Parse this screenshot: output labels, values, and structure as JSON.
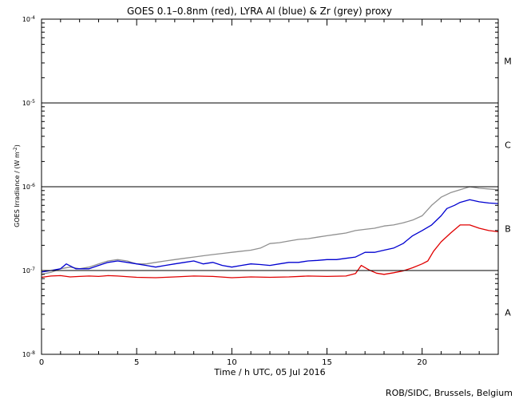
{
  "chart_data": {
    "type": "line",
    "title": "GOES 0.1–0.8nm (red), LYRA Al (blue) & Zr (grey) proxy",
    "xlabel": "Time / h UTC, 05 Jul 2016",
    "ylabel": "GOES Irradiance / (W m",
    "ylabel_sup": "-2",
    "ylabel_close": ")",
    "xlim": [
      0,
      24
    ],
    "ylim": [
      1e-08,
      0.0001
    ],
    "yscale": "log",
    "x_ticks": [
      {
        "value": 0,
        "label": "0"
      },
      {
        "value": 5,
        "label": "5"
      },
      {
        "value": 10,
        "label": "10"
      },
      {
        "value": 15,
        "label": "15"
      },
      {
        "value": 20,
        "label": "20"
      }
    ],
    "y_ticks": [
      {
        "exp": -8,
        "base": "10",
        "sup": "-8"
      },
      {
        "exp": -7,
        "base": "10",
        "sup": "-7"
      },
      {
        "exp": -6,
        "base": "10",
        "sup": "-6"
      },
      {
        "exp": -5,
        "base": "10",
        "sup": "-5"
      },
      {
        "exp": -4,
        "base": "10",
        "sup": "-4"
      }
    ],
    "flare_class_lines": [
      1e-07,
      1e-06,
      1e-05
    ],
    "flare_classes": [
      {
        "label": "A",
        "exp": -7.5
      },
      {
        "label": "B",
        "exp": -6.5
      },
      {
        "label": "C",
        "exp": -5.5
      },
      {
        "label": "M",
        "exp": -4.5
      }
    ],
    "series": [
      {
        "name": "GOES 0.1–0.8nm",
        "color": "#e00000",
        "x": [
          0,
          0.5,
          1,
          1.5,
          2,
          2.5,
          3,
          3.5,
          4,
          5,
          6,
          7,
          8,
          9,
          10,
          11,
          12,
          13,
          14,
          15,
          16,
          16.5,
          16.8,
          17.2,
          17.6,
          18,
          18.5,
          19,
          19.5,
          20,
          20.3,
          20.6,
          21,
          21.5,
          22,
          22.5,
          23,
          23.5,
          24
        ],
        "y": [
          8.3e-08,
          8.6e-08,
          8.7e-08,
          8.4e-08,
          8.5e-08,
          8.6e-08,
          8.5e-08,
          8.7e-08,
          8.6e-08,
          8.3e-08,
          8.2e-08,
          8.4e-08,
          8.6e-08,
          8.5e-08,
          8.2e-08,
          8.4e-08,
          8.3e-08,
          8.4e-08,
          8.6e-08,
          8.5e-08,
          8.6e-08,
          9.2e-08,
          1.15e-07,
          1.02e-07,
          9.3e-08,
          9e-08,
          9.4e-08,
          9.9e-08,
          1.08e-07,
          1.2e-07,
          1.3e-07,
          1.7e-07,
          2.2e-07,
          2.8e-07,
          3.5e-07,
          3.5e-07,
          3.2e-07,
          3e-07,
          2.9e-07
        ]
      },
      {
        "name": "LYRA Al proxy",
        "color": "#0000d0",
        "x": [
          0,
          0.5,
          1,
          1.3,
          1.8,
          2.5,
          3,
          3.5,
          4,
          4.5,
          5,
          5.5,
          6,
          6.5,
          7,
          7.5,
          8,
          8.5,
          9,
          9.5,
          10,
          10.5,
          11,
          11.5,
          12,
          12.5,
          13,
          13.5,
          14,
          14.5,
          15,
          15.5,
          16,
          16.5,
          17,
          17.5,
          18,
          18.5,
          19,
          19.5,
          20,
          20.5,
          21,
          21.3,
          21.7,
          22,
          22.5,
          23,
          23.5,
          24
        ],
        "y": [
          9.6e-08,
          1e-07,
          1.05e-07,
          1.2e-07,
          1.05e-07,
          1.05e-07,
          1.15e-07,
          1.25e-07,
          1.3e-07,
          1.25e-07,
          1.2e-07,
          1.15e-07,
          1.1e-07,
          1.15e-07,
          1.2e-07,
          1.25e-07,
          1.3e-07,
          1.2e-07,
          1.25e-07,
          1.15e-07,
          1.1e-07,
          1.15e-07,
          1.2e-07,
          1.18e-07,
          1.15e-07,
          1.2e-07,
          1.25e-07,
          1.25e-07,
          1.3e-07,
          1.32e-07,
          1.35e-07,
          1.35e-07,
          1.4e-07,
          1.45e-07,
          1.65e-07,
          1.65e-07,
          1.75e-07,
          1.85e-07,
          2.1e-07,
          2.6e-07,
          3e-07,
          3.5e-07,
          4.5e-07,
          5.5e-07,
          6e-07,
          6.5e-07,
          7e-07,
          6.6e-07,
          6.4e-07,
          6.3e-07
        ]
      },
      {
        "name": "LYRA Zr proxy",
        "color": "#909090",
        "x": [
          0,
          0.5,
          1,
          1.5,
          2,
          2.5,
          3,
          3.5,
          4,
          4.5,
          5,
          5.5,
          6,
          6.5,
          7,
          7.5,
          8,
          8.5,
          9,
          9.5,
          10,
          10.5,
          11,
          11.5,
          12,
          12.5,
          13,
          13.5,
          14,
          14.5,
          15,
          15.5,
          16,
          16.5,
          17,
          17.5,
          18,
          18.5,
          19,
          19.5,
          20,
          20.5,
          21,
          21.5,
          22,
          22.5,
          23,
          23.5,
          24
        ],
        "y": [
          9e-08,
          9.5e-08,
          1.05e-07,
          1.1e-07,
          1.05e-07,
          1.1e-07,
          1.2e-07,
          1.3e-07,
          1.35e-07,
          1.3e-07,
          1.2e-07,
          1.2e-07,
          1.25e-07,
          1.3e-07,
          1.35e-07,
          1.4e-07,
          1.45e-07,
          1.5e-07,
          1.55e-07,
          1.6e-07,
          1.65e-07,
          1.7e-07,
          1.75e-07,
          1.85e-07,
          2.1e-07,
          2.15e-07,
          2.25e-07,
          2.35e-07,
          2.4e-07,
          2.5e-07,
          2.6e-07,
          2.7e-07,
          2.8e-07,
          3e-07,
          3.1e-07,
          3.2e-07,
          3.4e-07,
          3.5e-07,
          3.7e-07,
          4e-07,
          4.5e-07,
          6e-07,
          7.5e-07,
          8.5e-07,
          9.2e-07,
          1e-06,
          9.6e-07,
          9.4e-07,
          9.2e-07
        ]
      }
    ],
    "credit": "ROB/SIDC, Brussels, Belgium"
  }
}
